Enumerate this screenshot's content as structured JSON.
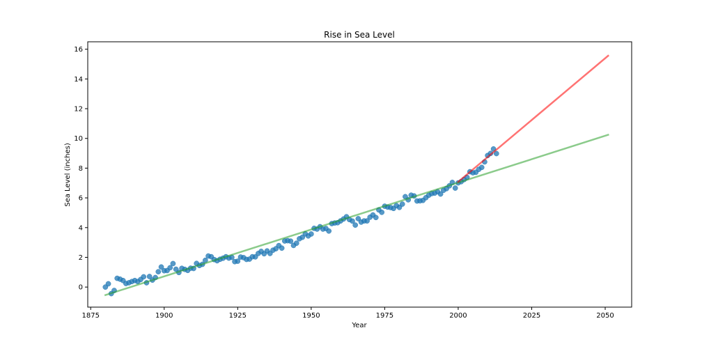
{
  "chart_data": {
    "type": "scatter",
    "title": "Rise in Sea Level",
    "xlabel": "Year",
    "ylabel": "Sea Level (inches)",
    "xlim": [
      1874,
      2059
    ],
    "ylim": [
      -1.35,
      16.5
    ],
    "x_ticks": [
      1875,
      1900,
      1925,
      1950,
      1975,
      2000,
      2025,
      2050
    ],
    "y_ticks": [
      0,
      2,
      4,
      6,
      8,
      10,
      12,
      14,
      16
    ],
    "grid": false,
    "scatter": {
      "color": "#1f77b4",
      "points": [
        [
          1880,
          0.0
        ],
        [
          1881,
          0.22
        ],
        [
          1882,
          -0.44
        ],
        [
          1883,
          -0.23
        ],
        [
          1884,
          0.59
        ],
        [
          1885,
          0.53
        ],
        [
          1886,
          0.44
        ],
        [
          1887,
          0.24
        ],
        [
          1888,
          0.29
        ],
        [
          1889,
          0.37
        ],
        [
          1890,
          0.44
        ],
        [
          1891,
          0.37
        ],
        [
          1892,
          0.51
        ],
        [
          1893,
          0.69
        ],
        [
          1894,
          0.29
        ],
        [
          1895,
          0.71
        ],
        [
          1896,
          0.47
        ],
        [
          1897,
          0.64
        ],
        [
          1898,
          1.03
        ],
        [
          1899,
          1.35
        ],
        [
          1900,
          1.1
        ],
        [
          1901,
          1.11
        ],
        [
          1902,
          1.3
        ],
        [
          1903,
          1.58
        ],
        [
          1904,
          1.2
        ],
        [
          1905,
          0.98
        ],
        [
          1906,
          1.26
        ],
        [
          1907,
          1.19
        ],
        [
          1908,
          1.12
        ],
        [
          1909,
          1.27
        ],
        [
          1910,
          1.25
        ],
        [
          1911,
          1.59
        ],
        [
          1912,
          1.45
        ],
        [
          1913,
          1.53
        ],
        [
          1914,
          1.8
        ],
        [
          1915,
          2.09
        ],
        [
          1916,
          2.04
        ],
        [
          1917,
          1.85
        ],
        [
          1918,
          1.77
        ],
        [
          1919,
          1.87
        ],
        [
          1920,
          1.94
        ],
        [
          1921,
          2.04
        ],
        [
          1922,
          1.95
        ],
        [
          1923,
          2.0
        ],
        [
          1924,
          1.71
        ],
        [
          1925,
          1.74
        ],
        [
          1926,
          2.02
        ],
        [
          1927,
          1.98
        ],
        [
          1928,
          1.86
        ],
        [
          1929,
          1.88
        ],
        [
          1930,
          2.04
        ],
        [
          1931,
          2.03
        ],
        [
          1932,
          2.26
        ],
        [
          1933,
          2.4
        ],
        [
          1934,
          2.24
        ],
        [
          1935,
          2.43
        ],
        [
          1936,
          2.26
        ],
        [
          1937,
          2.48
        ],
        [
          1938,
          2.58
        ],
        [
          1939,
          2.79
        ],
        [
          1940,
          2.62
        ],
        [
          1941,
          3.1
        ],
        [
          1942,
          3.12
        ],
        [
          1943,
          3.09
        ],
        [
          1944,
          2.8
        ],
        [
          1945,
          2.95
        ],
        [
          1946,
          3.25
        ],
        [
          1947,
          3.35
        ],
        [
          1948,
          3.58
        ],
        [
          1949,
          3.44
        ],
        [
          1950,
          3.57
        ],
        [
          1951,
          3.95
        ],
        [
          1952,
          3.9
        ],
        [
          1953,
          4.06
        ],
        [
          1954,
          3.9
        ],
        [
          1955,
          3.94
        ],
        [
          1956,
          3.77
        ],
        [
          1957,
          4.27
        ],
        [
          1958,
          4.31
        ],
        [
          1959,
          4.33
        ],
        [
          1960,
          4.45
        ],
        [
          1961,
          4.58
        ],
        [
          1962,
          4.73
        ],
        [
          1963,
          4.54
        ],
        [
          1964,
          4.44
        ],
        [
          1965,
          4.17
        ],
        [
          1966,
          4.6
        ],
        [
          1967,
          4.37
        ],
        [
          1968,
          4.45
        ],
        [
          1969,
          4.45
        ],
        [
          1970,
          4.7
        ],
        [
          1971,
          4.85
        ],
        [
          1972,
          4.68
        ],
        [
          1973,
          5.19
        ],
        [
          1974,
          5.03
        ],
        [
          1975,
          5.44
        ],
        [
          1976,
          5.38
        ],
        [
          1977,
          5.35
        ],
        [
          1978,
          5.29
        ],
        [
          1979,
          5.48
        ],
        [
          1980,
          5.36
        ],
        [
          1981,
          5.58
        ],
        [
          1982,
          6.08
        ],
        [
          1983,
          5.87
        ],
        [
          1984,
          6.18
        ],
        [
          1985,
          6.13
        ],
        [
          1986,
          5.79
        ],
        [
          1987,
          5.8
        ],
        [
          1988,
          5.83
        ],
        [
          1989,
          6.01
        ],
        [
          1990,
          6.18
        ],
        [
          1991,
          6.29
        ],
        [
          1992,
          6.32
        ],
        [
          1993,
          6.41
        ],
        [
          1994,
          6.26
        ],
        [
          1995,
          6.51
        ],
        [
          1996,
          6.62
        ],
        [
          1997,
          6.81
        ],
        [
          1998,
          7.04
        ],
        [
          1999,
          6.66
        ],
        [
          2000,
          7.01
        ],
        [
          2001,
          7.09
        ],
        [
          2002,
          7.23
        ],
        [
          2003,
          7.38
        ],
        [
          2004,
          7.76
        ],
        [
          2005,
          7.69
        ],
        [
          2006,
          7.72
        ],
        [
          2007,
          7.92
        ],
        [
          2008,
          8.05
        ],
        [
          2009,
          8.42
        ],
        [
          2010,
          8.85
        ],
        [
          2011,
          8.99
        ],
        [
          2012,
          9.29
        ],
        [
          2013,
          8.98
        ]
      ]
    },
    "lines": [
      {
        "type": "fit",
        "color": "#2ca02c",
        "x": [
          1880,
          2051
        ],
        "y": [
          -0.54,
          10.24
        ]
      },
      {
        "type": "fit",
        "color": "#ff0000",
        "x": [
          2000,
          2051
        ],
        "y": [
          7.08,
          15.56
        ]
      }
    ]
  }
}
